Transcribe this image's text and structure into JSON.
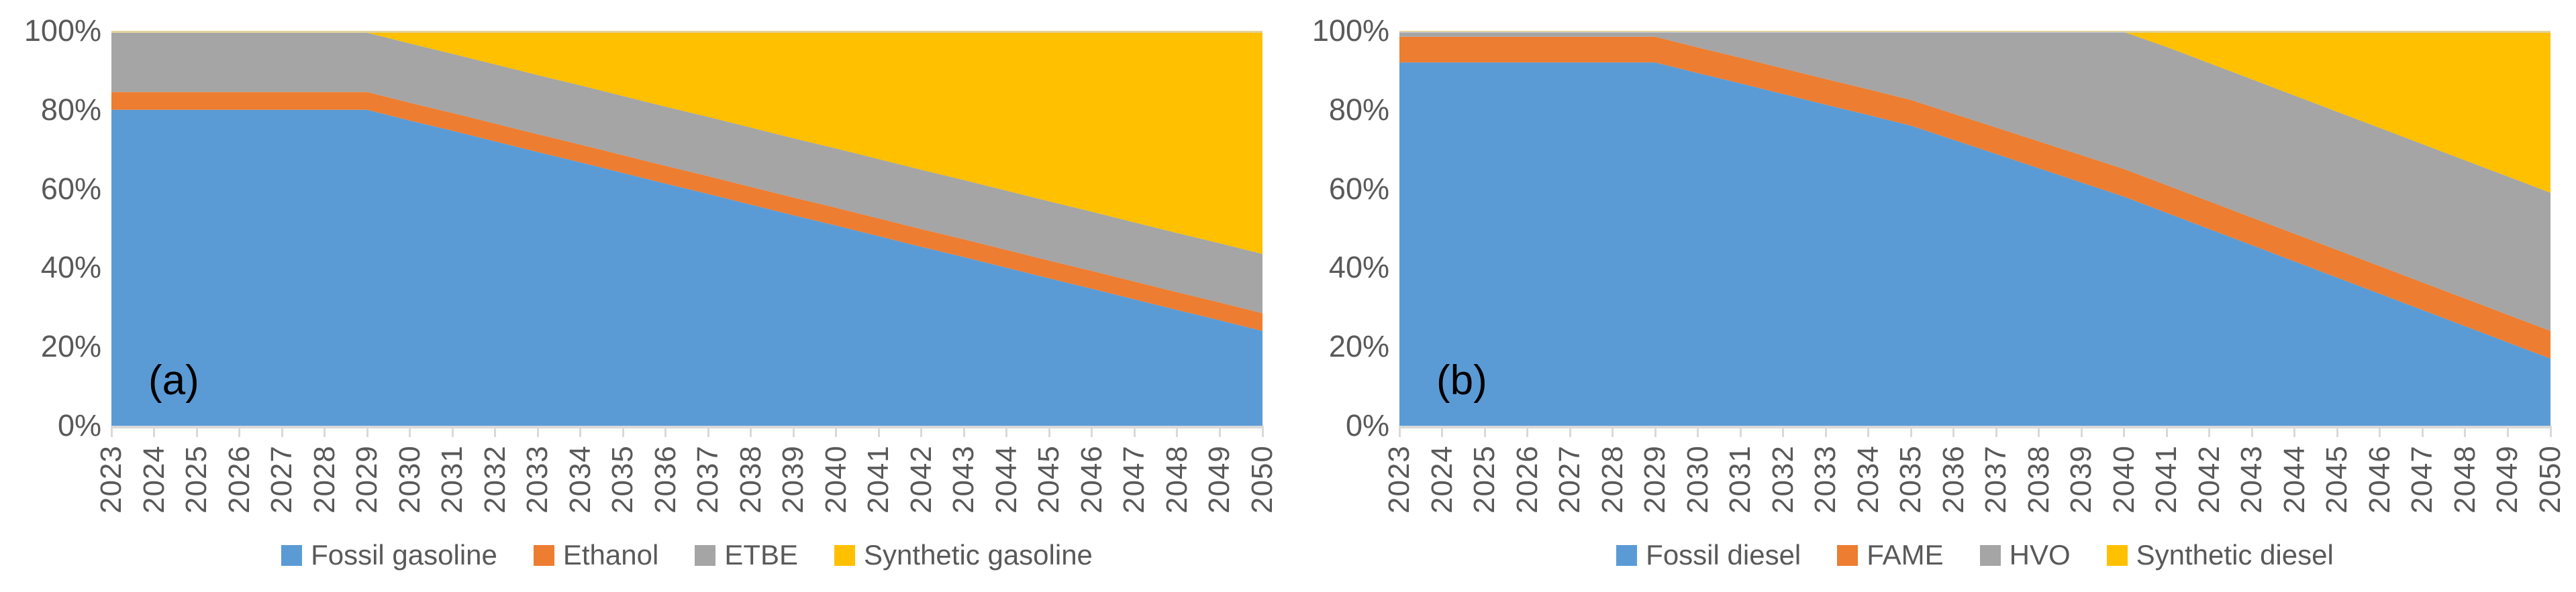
{
  "figure": {
    "background": "#ffffff",
    "axis_line_color": "#d9d9d9",
    "tick_text_color": "#595959",
    "panel_label_color": "#000000"
  },
  "chart_data": [
    {
      "type": "area",
      "stacking": "percent",
      "panel_label": "(a)",
      "title": "",
      "xlabel": "",
      "ylabel": "",
      "ylim": [
        0,
        100
      ],
      "grid": false,
      "legend_position": "bottom",
      "y_ticks": [
        "0%",
        "20%",
        "40%",
        "60%",
        "80%",
        "100%"
      ],
      "categories": [
        2023,
        2024,
        2025,
        2026,
        2027,
        2028,
        2029,
        2030,
        2031,
        2032,
        2033,
        2034,
        2035,
        2036,
        2037,
        2038,
        2039,
        2040,
        2041,
        2042,
        2043,
        2044,
        2045,
        2046,
        2047,
        2048,
        2049,
        2050
      ],
      "series": [
        {
          "name": "Fossil gasoline",
          "color": "#5B9BD5",
          "values": [
            80,
            80,
            80,
            80,
            80,
            80,
            80,
            77.3,
            74.7,
            72,
            69.3,
            66.7,
            64,
            61.3,
            58.7,
            56,
            53.3,
            50.7,
            48,
            45.3,
            42.7,
            40,
            37.3,
            34.7,
            32,
            29.3,
            26.7,
            24
          ]
        },
        {
          "name": "Ethanol",
          "color": "#ED7D31",
          "values": [
            4.5,
            4.5,
            4.5,
            4.5,
            4.5,
            4.5,
            4.5,
            4.5,
            4.5,
            4.5,
            4.5,
            4.5,
            4.5,
            4.5,
            4.5,
            4.5,
            4.5,
            4.5,
            4.5,
            4.5,
            4.5,
            4.5,
            4.5,
            4.5,
            4.5,
            4.5,
            4.5,
            4.5
          ]
        },
        {
          "name": "ETBE",
          "color": "#A5A5A5",
          "values": [
            15,
            15,
            15,
            15,
            15,
            15,
            15,
            15,
            15,
            15,
            15,
            15,
            15,
            15,
            15,
            15,
            15,
            15,
            15,
            15,
            15,
            15,
            15,
            15,
            15,
            15,
            15,
            15
          ]
        },
        {
          "name": "Synthetic gasoline",
          "color": "#FFC000",
          "values": [
            0.5,
            0.5,
            0.5,
            0.5,
            0.5,
            0.5,
            0.5,
            3.2,
            5.8,
            8.5,
            11.2,
            13.8,
            16.5,
            19.2,
            21.8,
            24.5,
            27.2,
            29.8,
            32.5,
            35.2,
            37.8,
            40.5,
            43.2,
            45.8,
            48.5,
            51.2,
            53.8,
            56.5
          ]
        }
      ]
    },
    {
      "type": "area",
      "stacking": "percent",
      "panel_label": "(b)",
      "title": "",
      "xlabel": "",
      "ylabel": "",
      "ylim": [
        0,
        100
      ],
      "grid": false,
      "legend_position": "bottom",
      "y_ticks": [
        "0%",
        "20%",
        "40%",
        "60%",
        "80%",
        "100%"
      ],
      "categories": [
        2023,
        2024,
        2025,
        2026,
        2027,
        2028,
        2029,
        2030,
        2031,
        2032,
        2033,
        2034,
        2035,
        2036,
        2037,
        2038,
        2039,
        2040,
        2041,
        2042,
        2043,
        2044,
        2045,
        2046,
        2047,
        2048,
        2049,
        2050
      ],
      "series": [
        {
          "name": "Fossil diesel",
          "color": "#5B9BD5",
          "values": [
            92,
            92,
            92,
            92,
            92,
            92,
            92,
            89.3,
            86.7,
            84,
            81.3,
            78.7,
            76,
            72.4,
            68.8,
            65.2,
            61.6,
            58,
            53.9,
            49.8,
            45.7,
            41.6,
            37.5,
            33.4,
            29.3,
            25.2,
            21.1,
            17
          ]
        },
        {
          "name": "FAME",
          "color": "#ED7D31",
          "values": [
            6.5,
            6.5,
            6.5,
            6.5,
            6.5,
            6.5,
            6.5,
            6.5,
            6.5,
            6.5,
            6.5,
            6.5,
            6.5,
            6.6,
            6.7,
            6.8,
            6.9,
            7,
            7,
            7,
            7,
            7,
            7,
            7,
            7,
            7,
            7,
            7
          ]
        },
        {
          "name": "HVO",
          "color": "#A5A5A5",
          "values": [
            1.2,
            1.2,
            1.2,
            1.2,
            1.2,
            1.2,
            1.2,
            3.9,
            6.5,
            9.2,
            11.9,
            14.5,
            17.2,
            20.7,
            24.2,
            27.7,
            31.2,
            34.7,
            35,
            35,
            35,
            35,
            35,
            35,
            35,
            35,
            35,
            35
          ]
        },
        {
          "name": "Synthetic diesel",
          "color": "#FFC000",
          "values": [
            0.3,
            0.3,
            0.3,
            0.3,
            0.3,
            0.3,
            0.3,
            0.3,
            0.3,
            0.3,
            0.3,
            0.3,
            0.3,
            0.3,
            0.3,
            0.3,
            0.3,
            0.3,
            4.1,
            8.2,
            12.3,
            16.4,
            20.5,
            24.6,
            28.7,
            32.8,
            36.9,
            41
          ]
        }
      ]
    }
  ]
}
